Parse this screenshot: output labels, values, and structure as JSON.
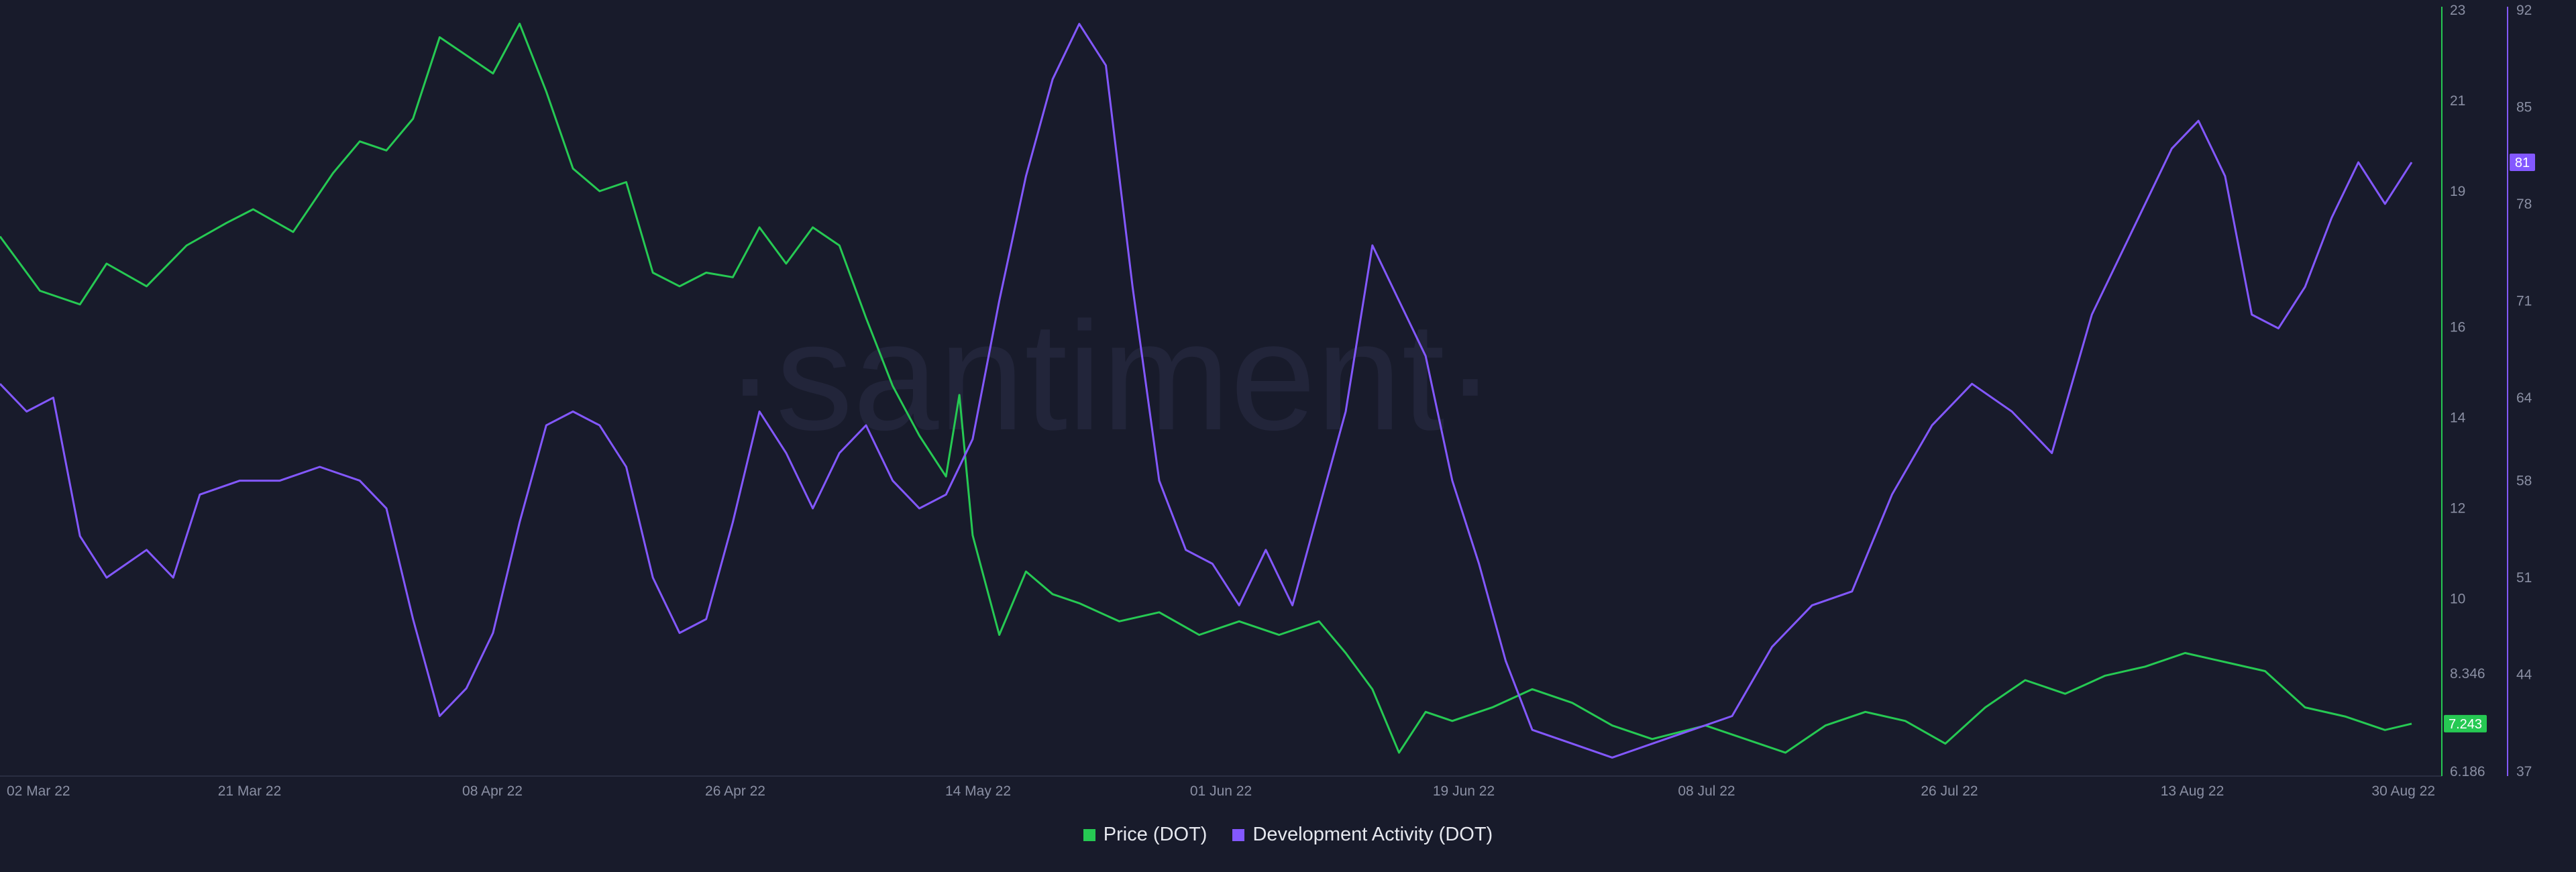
{
  "watermark": "·santiment·",
  "chart_data": {
    "type": "line",
    "x_ticks": [
      "02 Mar 22",
      "21 Mar 22",
      "08 Apr 22",
      "26 Apr 22",
      "14 May 22",
      "01 Jun 22",
      "19 Jun 22",
      "08 Jul 22",
      "26 Jul 22",
      "13 Aug 22",
      "30 Aug 22"
    ],
    "x_range": [
      "2022-03-02",
      "2022-08-30"
    ],
    "series": [
      {
        "name": "Price (DOT)",
        "color": "#26c953",
        "axis": "price",
        "last_value_label": "7.243",
        "points": [
          [
            "2022-03-02",
            18.0
          ],
          [
            "2022-03-05",
            16.8
          ],
          [
            "2022-03-08",
            16.5
          ],
          [
            "2022-03-10",
            17.4
          ],
          [
            "2022-03-13",
            16.9
          ],
          [
            "2022-03-16",
            17.8
          ],
          [
            "2022-03-19",
            18.3
          ],
          [
            "2022-03-21",
            18.6
          ],
          [
            "2022-03-24",
            18.1
          ],
          [
            "2022-03-27",
            19.4
          ],
          [
            "2022-03-29",
            20.1
          ],
          [
            "2022-03-31",
            19.9
          ],
          [
            "2022-04-02",
            20.6
          ],
          [
            "2022-04-04",
            22.4
          ],
          [
            "2022-04-06",
            22.0
          ],
          [
            "2022-04-08",
            21.6
          ],
          [
            "2022-04-10",
            22.7
          ],
          [
            "2022-04-12",
            21.2
          ],
          [
            "2022-04-14",
            19.5
          ],
          [
            "2022-04-16",
            19.0
          ],
          [
            "2022-04-18",
            19.2
          ],
          [
            "2022-04-20",
            17.2
          ],
          [
            "2022-04-22",
            16.9
          ],
          [
            "2022-04-24",
            17.2
          ],
          [
            "2022-04-26",
            17.1
          ],
          [
            "2022-04-28",
            18.2
          ],
          [
            "2022-04-30",
            17.4
          ],
          [
            "2022-05-02",
            18.2
          ],
          [
            "2022-05-04",
            17.8
          ],
          [
            "2022-05-06",
            16.2
          ],
          [
            "2022-05-08",
            14.7
          ],
          [
            "2022-05-10",
            13.6
          ],
          [
            "2022-05-12",
            12.7
          ],
          [
            "2022-05-13",
            14.5
          ],
          [
            "2022-05-14",
            11.4
          ],
          [
            "2022-05-16",
            9.2
          ],
          [
            "2022-05-18",
            10.6
          ],
          [
            "2022-05-20",
            10.1
          ],
          [
            "2022-05-22",
            9.9
          ],
          [
            "2022-05-25",
            9.5
          ],
          [
            "2022-05-28",
            9.7
          ],
          [
            "2022-05-31",
            9.2
          ],
          [
            "2022-06-03",
            9.5
          ],
          [
            "2022-06-06",
            9.2
          ],
          [
            "2022-06-09",
            9.5
          ],
          [
            "2022-06-11",
            8.8
          ],
          [
            "2022-06-13",
            8.0
          ],
          [
            "2022-06-15",
            6.6
          ],
          [
            "2022-06-17",
            7.5
          ],
          [
            "2022-06-19",
            7.3
          ],
          [
            "2022-06-22",
            7.6
          ],
          [
            "2022-06-25",
            8.0
          ],
          [
            "2022-06-28",
            7.7
          ],
          [
            "2022-07-01",
            7.2
          ],
          [
            "2022-07-04",
            6.9
          ],
          [
            "2022-07-08",
            7.2
          ],
          [
            "2022-07-11",
            6.9
          ],
          [
            "2022-07-14",
            6.6
          ],
          [
            "2022-07-17",
            7.2
          ],
          [
            "2022-07-20",
            7.5
          ],
          [
            "2022-07-23",
            7.3
          ],
          [
            "2022-07-26",
            6.8
          ],
          [
            "2022-07-29",
            7.6
          ],
          [
            "2022-08-01",
            8.2
          ],
          [
            "2022-08-04",
            7.9
          ],
          [
            "2022-08-07",
            8.3
          ],
          [
            "2022-08-10",
            8.5
          ],
          [
            "2022-08-13",
            8.8
          ],
          [
            "2022-08-16",
            8.6
          ],
          [
            "2022-08-19",
            8.4
          ],
          [
            "2022-08-22",
            7.6
          ],
          [
            "2022-08-25",
            7.4
          ],
          [
            "2022-08-28",
            7.1
          ],
          [
            "2022-08-30",
            7.24
          ]
        ]
      },
      {
        "name": "Development Activity (DOT)",
        "color": "#8358ff",
        "axis": "dev",
        "last_value_label": "81",
        "points": [
          [
            "2022-03-02",
            65
          ],
          [
            "2022-03-04",
            63
          ],
          [
            "2022-03-06",
            64
          ],
          [
            "2022-03-08",
            54
          ],
          [
            "2022-03-10",
            51
          ],
          [
            "2022-03-13",
            53
          ],
          [
            "2022-03-15",
            51
          ],
          [
            "2022-03-17",
            57
          ],
          [
            "2022-03-20",
            58
          ],
          [
            "2022-03-23",
            58
          ],
          [
            "2022-03-26",
            59
          ],
          [
            "2022-03-29",
            58
          ],
          [
            "2022-03-31",
            56
          ],
          [
            "2022-04-02",
            48
          ],
          [
            "2022-04-04",
            41
          ],
          [
            "2022-04-06",
            43
          ],
          [
            "2022-04-08",
            47
          ],
          [
            "2022-04-10",
            55
          ],
          [
            "2022-04-12",
            62
          ],
          [
            "2022-04-14",
            63
          ],
          [
            "2022-04-16",
            62
          ],
          [
            "2022-04-18",
            59
          ],
          [
            "2022-04-20",
            51
          ],
          [
            "2022-04-22",
            47
          ],
          [
            "2022-04-24",
            48
          ],
          [
            "2022-04-26",
            55
          ],
          [
            "2022-04-28",
            63
          ],
          [
            "2022-04-30",
            60
          ],
          [
            "2022-05-02",
            56
          ],
          [
            "2022-05-04",
            60
          ],
          [
            "2022-05-06",
            62
          ],
          [
            "2022-05-08",
            58
          ],
          [
            "2022-05-10",
            56
          ],
          [
            "2022-05-12",
            57
          ],
          [
            "2022-05-14",
            61
          ],
          [
            "2022-05-16",
            71
          ],
          [
            "2022-05-18",
            80
          ],
          [
            "2022-05-20",
            87
          ],
          [
            "2022-05-22",
            91
          ],
          [
            "2022-05-24",
            88
          ],
          [
            "2022-05-26",
            72
          ],
          [
            "2022-05-28",
            58
          ],
          [
            "2022-05-30",
            53
          ],
          [
            "2022-06-01",
            52
          ],
          [
            "2022-06-03",
            49
          ],
          [
            "2022-06-05",
            53
          ],
          [
            "2022-06-07",
            49
          ],
          [
            "2022-06-09",
            56
          ],
          [
            "2022-06-11",
            63
          ],
          [
            "2022-06-13",
            75
          ],
          [
            "2022-06-15",
            71
          ],
          [
            "2022-06-17",
            67
          ],
          [
            "2022-06-19",
            58
          ],
          [
            "2022-06-21",
            52
          ],
          [
            "2022-06-23",
            45
          ],
          [
            "2022-06-25",
            40
          ],
          [
            "2022-06-28",
            39
          ],
          [
            "2022-07-01",
            38
          ],
          [
            "2022-07-04",
            39
          ],
          [
            "2022-07-07",
            40
          ],
          [
            "2022-07-10",
            41
          ],
          [
            "2022-07-13",
            46
          ],
          [
            "2022-07-16",
            49
          ],
          [
            "2022-07-19",
            50
          ],
          [
            "2022-07-22",
            57
          ],
          [
            "2022-07-25",
            62
          ],
          [
            "2022-07-28",
            65
          ],
          [
            "2022-07-31",
            63
          ],
          [
            "2022-08-03",
            60
          ],
          [
            "2022-08-06",
            70
          ],
          [
            "2022-08-09",
            76
          ],
          [
            "2022-08-12",
            82
          ],
          [
            "2022-08-14",
            84
          ],
          [
            "2022-08-16",
            80
          ],
          [
            "2022-08-18",
            70
          ],
          [
            "2022-08-20",
            69
          ],
          [
            "2022-08-22",
            72
          ],
          [
            "2022-08-24",
            77
          ],
          [
            "2022-08-26",
            81
          ],
          [
            "2022-08-28",
            78
          ],
          [
            "2022-08-30",
            81
          ]
        ]
      }
    ],
    "axes": {
      "price": {
        "min": 6.186,
        "max": 23,
        "ticks": [
          "23",
          "21",
          "19",
          "16",
          "14",
          "12",
          "10",
          "8.346",
          "6.186"
        ],
        "tick_values": [
          23,
          21,
          19,
          16,
          14,
          12,
          10,
          8.346,
          6.186
        ],
        "color": "#26c953"
      },
      "dev": {
        "min": 37,
        "max": 92,
        "ticks": [
          "92",
          "85",
          "78",
          "71",
          "64",
          "58",
          "51",
          "44",
          "37"
        ],
        "tick_values": [
          92,
          85,
          78,
          71,
          64,
          58,
          51,
          44,
          37
        ],
        "color": "#8358ff"
      }
    },
    "grid": false,
    "legend_position": "bottom-center"
  },
  "legend": [
    {
      "label": "Price (DOT)",
      "color": "#26c953"
    },
    {
      "label": "Development Activity (DOT)",
      "color": "#8358ff"
    }
  ]
}
